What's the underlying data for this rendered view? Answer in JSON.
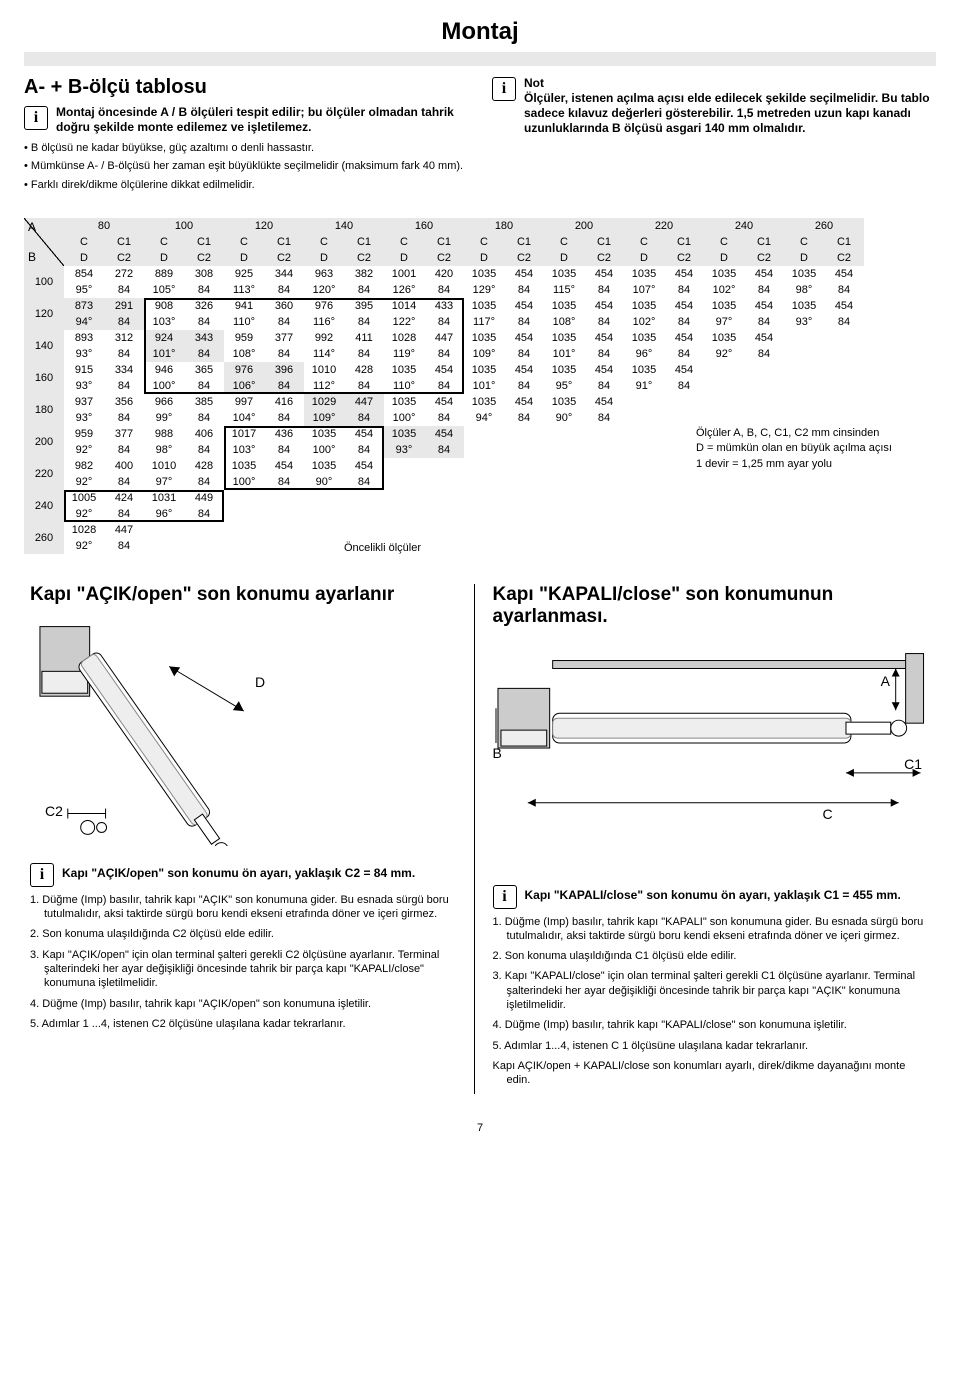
{
  "page_title": "Montaj",
  "left": {
    "heading": "A- + B-ölçü tablosu",
    "info_bold": "Montaj öncesinde A / B ölçüleri tespit edilir; bu ölçüler olmadan tahrik doğru şekilde monte edilemez ve işletilemez.",
    "bullets": [
      "B ölçüsü ne kadar büyükse, güç azaltımı o denli hassastır.",
      "Mümkünse A- / B-ölçüsü her zaman eşit büyüklükte seçilmelidir (maksimum fark 40 mm).",
      "Farklı direk/dikme ölçülerine dikkat edilmelidir."
    ]
  },
  "right": {
    "note_label": "Not",
    "note_text": "Ölçüler, istenen açılma açısı elde edilecek şekilde seçilmelidir. Bu tablo sadece kılavuz değerleri gösterebilir. 1,5 metreden uzun kapı kanadı uzunluklarında B ölçüsü asgari 140 mm olmalıdır."
  },
  "table": {
    "a_values": [
      "80",
      "100",
      "120",
      "140",
      "160",
      "180",
      "200",
      "220",
      "240",
      "260"
    ],
    "subhead": [
      "C",
      "C1",
      "D",
      "C2"
    ],
    "b_values": [
      "100",
      "120",
      "140",
      "160",
      "180",
      "200",
      "220",
      "240",
      "260"
    ],
    "cells": {
      "100": [
        [
          "854",
          "272",
          "889",
          "308",
          "925",
          "344",
          "963",
          "382",
          "1001",
          "420",
          "1035",
          "454",
          "1035",
          "454",
          "1035",
          "454",
          "1035",
          "454",
          "1035",
          "454"
        ],
        [
          "95°",
          "84",
          "105°",
          "84",
          "113°",
          "84",
          "120°",
          "84",
          "126°",
          "84",
          "129°",
          "84",
          "115°",
          "84",
          "107°",
          "84",
          "102°",
          "84",
          "98°",
          "84"
        ]
      ],
      "120": [
        [
          "873",
          "291",
          "908",
          "326",
          "941",
          "360",
          "976",
          "395",
          "1014",
          "433",
          "1035",
          "454",
          "1035",
          "454",
          "1035",
          "454",
          "1035",
          "454",
          "1035",
          "454"
        ],
        [
          "94°",
          "84",
          "103°",
          "84",
          "110°",
          "84",
          "116°",
          "84",
          "122°",
          "84",
          "117°",
          "84",
          "108°",
          "84",
          "102°",
          "84",
          "97°",
          "84",
          "93°",
          "84"
        ]
      ],
      "140": [
        [
          "893",
          "312",
          "924",
          "343",
          "959",
          "377",
          "992",
          "411",
          "1028",
          "447",
          "1035",
          "454",
          "1035",
          "454",
          "1035",
          "454",
          "1035",
          "454"
        ],
        [
          "93°",
          "84",
          "101°",
          "84",
          "108°",
          "84",
          "114°",
          "84",
          "119°",
          "84",
          "109°",
          "84",
          "101°",
          "84",
          "96°",
          "84",
          "92°",
          "84"
        ]
      ],
      "160": [
        [
          "915",
          "334",
          "946",
          "365",
          "976",
          "396",
          "1010",
          "428",
          "1035",
          "454",
          "1035",
          "454",
          "1035",
          "454",
          "1035",
          "454"
        ],
        [
          "93°",
          "84",
          "100°",
          "84",
          "106°",
          "84",
          "112°",
          "84",
          "110°",
          "84",
          "101°",
          "84",
          "95°",
          "84",
          "91°",
          "84"
        ]
      ],
      "180": [
        [
          "937",
          "356",
          "966",
          "385",
          "997",
          "416",
          "1029",
          "447",
          "1035",
          "454",
          "1035",
          "454",
          "1035",
          "454"
        ],
        [
          "93°",
          "84",
          "99°",
          "84",
          "104°",
          "84",
          "109°",
          "84",
          "100°",
          "84",
          "94°",
          "84",
          "90°",
          "84"
        ]
      ],
      "200": [
        [
          "959",
          "377",
          "988",
          "406",
          "1017",
          "436",
          "1035",
          "454",
          "1035",
          "454"
        ],
        [
          "92°",
          "84",
          "98°",
          "84",
          "103°",
          "84",
          "100°",
          "84",
          "93°",
          "84"
        ]
      ],
      "220": [
        [
          "982",
          "400",
          "1010",
          "428",
          "1035",
          "454",
          "1035",
          "454"
        ],
        [
          "92°",
          "84",
          "97°",
          "84",
          "100°",
          "84",
          "90°",
          "84"
        ]
      ],
      "240": [
        [
          "1005",
          "424",
          "1031",
          "449"
        ],
        [
          "92°",
          "84",
          "96°",
          "84"
        ]
      ],
      "260": [
        [
          "1028",
          "447"
        ],
        [
          "92°",
          "84"
        ]
      ]
    },
    "priority_label": "Öncelikli ölçüler",
    "side_note_lines": [
      "Ölçüler A, B, C, C1, C2 mm cinsinden",
      "D = mümkün olan en büyük açılma açısı",
      "1 devir = 1,25 mm ayar yolu"
    ],
    "shade_start_row": 1
  },
  "lower": {
    "open": {
      "heading": "Kapı \"AÇIK/open\" son konumu ayarlanır",
      "diag_labels": {
        "D": "D",
        "C2": "C2"
      },
      "info": "Kapı \"AÇIK/open\" son konumu ön ayarı, yaklaşık C2 = 84 mm.",
      "steps": [
        "1. Düğme (Imp) basılır, tahrik kapı \"AÇIK\" son konumuna gider. Bu esnada sürgü boru tutulmalıdır, aksi taktirde sürgü boru kendi ekseni etrafında döner ve içeri girmez.",
        "2. Son konuma ulaşıldığında C2 ölçüsü elde edilir.",
        "3. Kapı \"AÇIK/open\" için olan terminal şalteri gerekli C2 ölçüsüne ayarlanır. Terminal şalterindeki her ayar değişikliği öncesinde tahrik bir parça kapı \"KAPALI/close\" konumuna işletilmelidir.",
        "4. Düğme (Imp) basılır, tahrik kapı \"AÇIK/open\" son konumuna işletilir.",
        "5. Adımlar 1 ...4, istenen C2 ölçüsüne ulaşılana kadar tekrarlanır."
      ]
    },
    "close": {
      "heading": "Kapı \"KAPALI/close\" son konumunun ayarlanması.",
      "diag_labels": {
        "A": "A",
        "B": "B",
        "C": "C",
        "C1": "C1"
      },
      "info": "Kapı \"KAPALI/close\" son konumu ön ayarı, yaklaşık C1 = 455 mm.",
      "steps": [
        "1. Düğme (Imp) basılır, tahrik kapı \"KAPALI\" son konumuna gider. Bu esnada sürgü boru tutulmalıdır, aksi taktirde sürgü boru kendi ekseni etrafında döner ve içeri girmez.",
        "2. Son konuma ulaşıldığında C1 ölçüsü elde edilir.",
        "3. Kapı \"KAPALI/close\" için olan terminal şalteri gerekli C1 ölçüsüne ayarlanır. Terminal şalterindeki her ayar değişikliği öncesinde tahrik bir parça kapı \"AÇIK\" konumuna işletilmelidir.",
        "4. Düğme (Imp) basılır, tahrik kapı \"KAPALI/close\" son konumuna işletilir.",
        "5. Adımlar 1...4, istenen C 1 ölçüsüne ulaşılana kadar tekrarlanır.",
        "Kapı AÇIK/open + KAPALI/close son konumları ayarlı, direk/dikme dayanağını monte edin."
      ]
    }
  },
  "page_number": "7"
}
